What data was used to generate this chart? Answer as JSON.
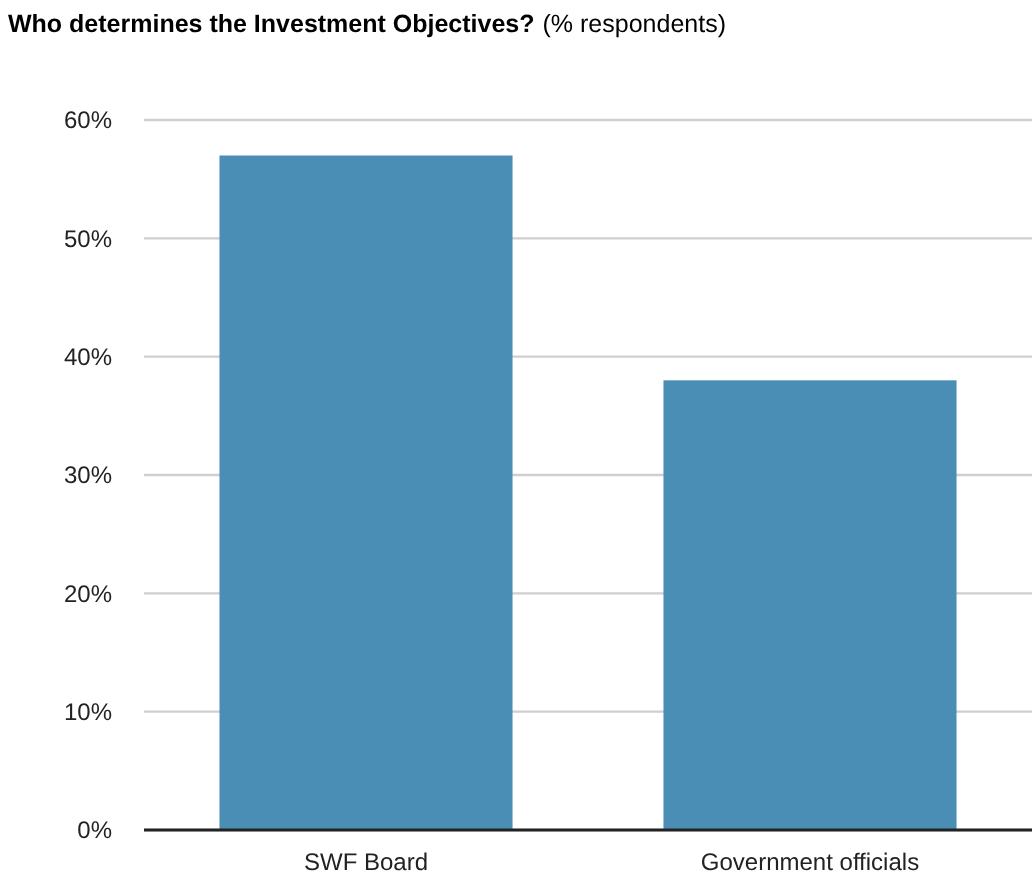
{
  "chart_data": {
    "type": "bar",
    "title": "Who determines the Investment Objectives?",
    "subtitle": "(% respondents)",
    "categories": [
      "SWF Board",
      "Government officials"
    ],
    "values": [
      57,
      38
    ],
    "color": "#4a8db5",
    "ylim": [
      0,
      60
    ],
    "yticks": [
      {
        "value": 0,
        "label": "0%"
      },
      {
        "value": 10,
        "label": "10%"
      },
      {
        "value": 20,
        "label": "20%"
      },
      {
        "value": 30,
        "label": "30%"
      },
      {
        "value": 40,
        "label": "40%"
      },
      {
        "value": 50,
        "label": "50%"
      },
      {
        "value": 60,
        "label": "60%"
      }
    ],
    "grid": "y"
  }
}
